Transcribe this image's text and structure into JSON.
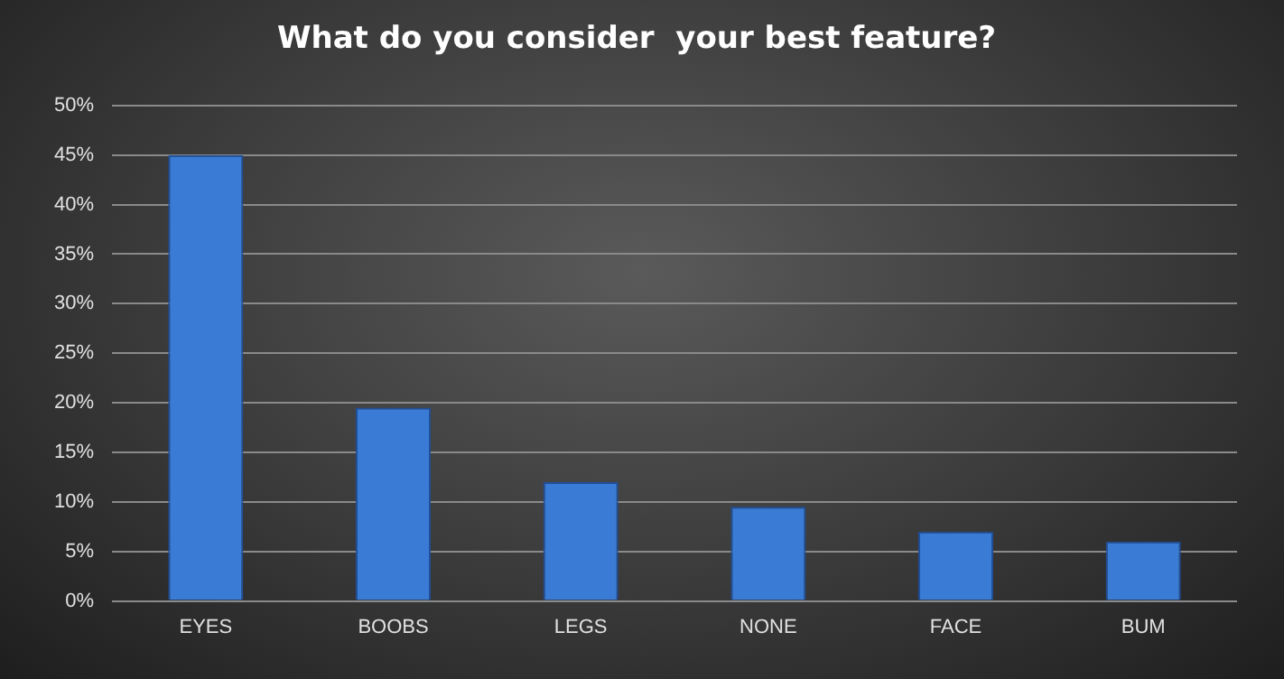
{
  "chart_data": {
    "type": "bar",
    "title": "What do you consider  your best feature?",
    "categories": [
      "EYES",
      "BOOBS",
      "LEGS",
      "NONE",
      "FACE",
      "BUM"
    ],
    "values": [
      45,
      19.5,
      12,
      9.5,
      7,
      6
    ],
    "color": "#3a7bd5",
    "ylim": [
      0,
      50
    ],
    "yticks": [
      {
        "value": 0,
        "label": "0%"
      },
      {
        "value": 5,
        "label": "5%"
      },
      {
        "value": 10,
        "label": "10%"
      },
      {
        "value": 15,
        "label": "15%"
      },
      {
        "value": 20,
        "label": "20%"
      },
      {
        "value": 25,
        "label": "25%"
      },
      {
        "value": 30,
        "label": "30%"
      },
      {
        "value": 35,
        "label": "35%"
      },
      {
        "value": 40,
        "label": "40%"
      },
      {
        "value": 45,
        "label": "45%"
      },
      {
        "value": 50,
        "label": "50%"
      }
    ],
    "grid": "y"
  }
}
